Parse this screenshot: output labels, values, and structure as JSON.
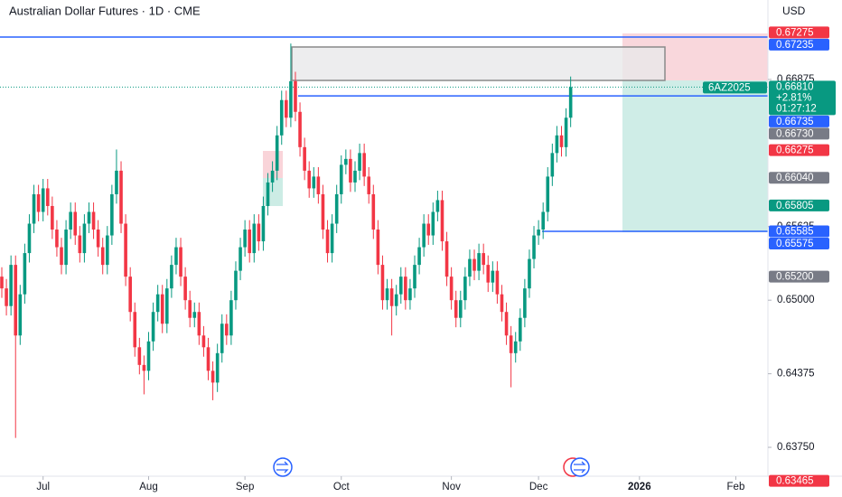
{
  "chart_data": {
    "type": "candlestick",
    "title": "Australian Dollar Futures · 1D · CME",
    "currency": "USD",
    "up_color": "#089981",
    "down_color": "#f23645",
    "xlim": [
      0,
      167
    ],
    "xticks": [
      {
        "value": 9,
        "label": "Jul"
      },
      {
        "value": 32,
        "label": "Aug"
      },
      {
        "value": 53,
        "label": "Sep"
      },
      {
        "value": 74,
        "label": "Oct"
      },
      {
        "value": 98,
        "label": "Nov"
      },
      {
        "value": 117,
        "label": "Dec"
      },
      {
        "value": 139,
        "label": "2026"
      },
      {
        "value": 160,
        "label": "Feb"
      }
    ],
    "ylim": [
      0.6352,
      0.6755
    ],
    "yticks": [
      {
        "value": 0.66875,
        "label": "0.66875"
      },
      {
        "value": 0.65625,
        "label": "0.65625"
      },
      {
        "value": 0.65,
        "label": "0.65000"
      },
      {
        "value": 0.64375,
        "label": "0.64375"
      },
      {
        "value": 0.6375,
        "label": "0.63750"
      }
    ],
    "open": [
      0.652,
      0.651,
      0.6495,
      0.653,
      0.647,
      0.6505,
      0.654,
      0.6565,
      0.659,
      0.6575,
      0.6595,
      0.658,
      0.656,
      0.6545,
      0.653,
      0.656,
      0.6575,
      0.6555,
      0.654,
      0.6565,
      0.6575,
      0.656,
      0.6545,
      0.653,
      0.6555,
      0.659,
      0.661,
      0.6565,
      0.652,
      0.649,
      0.646,
      0.6445,
      0.644,
      0.6465,
      0.649,
      0.6505,
      0.648,
      0.651,
      0.653,
      0.6545,
      0.652,
      0.65,
      0.6485,
      0.649,
      0.647,
      0.646,
      0.644,
      0.643,
      0.6455,
      0.648,
      0.647,
      0.65,
      0.6525,
      0.6545,
      0.656,
      0.654,
      0.6565,
      0.655,
      0.658,
      0.66,
      0.661,
      0.664,
      0.667,
      0.6655,
      0.6686,
      0.666,
      0.663,
      0.661,
      0.6595,
      0.6605,
      0.659,
      0.656,
      0.654,
      0.6565,
      0.659,
      0.6615,
      0.662,
      0.66,
      0.661,
      0.6625,
      0.6605,
      0.659,
      0.656,
      0.653,
      0.65,
      0.651,
      0.6495,
      0.6505,
      0.652,
      0.65,
      0.651,
      0.653,
      0.6545,
      0.6565,
      0.6555,
      0.6575,
      0.6585,
      0.655,
      0.652,
      0.65,
      0.6485,
      0.65,
      0.652,
      0.6535,
      0.6525,
      0.654,
      0.653,
      0.6515,
      0.6525,
      0.6505,
      0.649,
      0.647,
      0.6455,
      0.6465,
      0.6485,
      0.651,
      0.6535,
      0.6555,
      0.656,
      0.6575,
      0.6605,
      0.6625,
      0.664,
      0.663,
      0.6655
    ],
    "high": [
      0.6528,
      0.6518,
      0.6538,
      0.6538,
      0.6513,
      0.6548,
      0.6573,
      0.6598,
      0.6598,
      0.6603,
      0.6603,
      0.6588,
      0.6568,
      0.6553,
      0.6568,
      0.6583,
      0.6583,
      0.6563,
      0.6573,
      0.6583,
      0.6583,
      0.6568,
      0.6553,
      0.6563,
      0.6598,
      0.6628,
      0.6618,
      0.6573,
      0.6528,
      0.6498,
      0.6468,
      0.6453,
      0.6473,
      0.6498,
      0.6513,
      0.6513,
      0.6518,
      0.6538,
      0.6553,
      0.6553,
      0.6528,
      0.6508,
      0.6498,
      0.6498,
      0.6478,
      0.6468,
      0.6448,
      0.6463,
      0.6488,
      0.6488,
      0.6508,
      0.6533,
      0.6553,
      0.6568,
      0.6568,
      0.6573,
      0.6573,
      0.6588,
      0.6608,
      0.6618,
      0.6648,
      0.6678,
      0.6678,
      0.6718,
      0.6694,
      0.6668,
      0.6638,
      0.6618,
      0.6613,
      0.6613,
      0.6598,
      0.6568,
      0.6573,
      0.6598,
      0.6623,
      0.6628,
      0.6628,
      0.6618,
      0.6633,
      0.6633,
      0.6613,
      0.6598,
      0.6568,
      0.6538,
      0.6518,
      0.6518,
      0.6513,
      0.6528,
      0.6528,
      0.6518,
      0.6538,
      0.6553,
      0.6573,
      0.6573,
      0.6583,
      0.6593,
      0.6593,
      0.6558,
      0.6528,
      0.6508,
      0.6508,
      0.6528,
      0.6543,
      0.6543,
      0.6548,
      0.6548,
      0.6538,
      0.6533,
      0.6533,
      0.6513,
      0.6498,
      0.6478,
      0.6473,
      0.6493,
      0.6518,
      0.6543,
      0.6563,
      0.6568,
      0.6583,
      0.6613,
      0.6633,
      0.6648,
      0.6648,
      0.6663,
      0.669
    ],
    "low": [
      0.6502,
      0.6487,
      0.6487,
      0.6383,
      0.6462,
      0.6497,
      0.6532,
      0.6557,
      0.6567,
      0.6567,
      0.6572,
      0.6552,
      0.6537,
      0.6522,
      0.6522,
      0.6552,
      0.6547,
      0.6532,
      0.6532,
      0.6557,
      0.6552,
      0.6537,
      0.6522,
      0.6522,
      0.6547,
      0.6582,
      0.6557,
      0.6512,
      0.6482,
      0.6452,
      0.6437,
      0.642,
      0.6432,
      0.6457,
      0.6482,
      0.6472,
      0.6472,
      0.6502,
      0.6522,
      0.6512,
      0.6492,
      0.6477,
      0.6477,
      0.6462,
      0.6452,
      0.6432,
      0.6415,
      0.6422,
      0.6447,
      0.6462,
      0.6462,
      0.6492,
      0.6517,
      0.6537,
      0.6532,
      0.6532,
      0.6542,
      0.6542,
      0.6572,
      0.6592,
      0.6602,
      0.6632,
      0.6647,
      0.6647,
      0.6652,
      0.6622,
      0.6602,
      0.6587,
      0.6587,
      0.6582,
      0.6552,
      0.6532,
      0.6532,
      0.6557,
      0.6582,
      0.6607,
      0.6592,
      0.6592,
      0.6602,
      0.6597,
      0.6582,
      0.6552,
      0.6522,
      0.6492,
      0.6492,
      0.647,
      0.6487,
      0.6497,
      0.6492,
      0.6492,
      0.6502,
      0.6522,
      0.6537,
      0.6547,
      0.6547,
      0.6567,
      0.6542,
      0.6512,
      0.6492,
      0.6477,
      0.6477,
      0.6492,
      0.6512,
      0.6517,
      0.6517,
      0.6522,
      0.6507,
      0.6507,
      0.6497,
      0.6482,
      0.6462,
      0.6426,
      0.6447,
      0.6457,
      0.6477,
      0.6502,
      0.6527,
      0.6547,
      0.6552,
      0.6567,
      0.6597,
      0.6617,
      0.6622,
      0.6622,
      0.6647
    ],
    "close": [
      0.651,
      0.6495,
      0.653,
      0.647,
      0.6505,
      0.654,
      0.6565,
      0.659,
      0.6575,
      0.6595,
      0.658,
      0.656,
      0.6545,
      0.653,
      0.656,
      0.6575,
      0.6555,
      0.654,
      0.6565,
      0.6575,
      0.656,
      0.6545,
      0.653,
      0.6555,
      0.659,
      0.661,
      0.6565,
      0.652,
      0.649,
      0.646,
      0.6445,
      0.644,
      0.6465,
      0.649,
      0.6505,
      0.648,
      0.651,
      0.653,
      0.6545,
      0.652,
      0.65,
      0.6485,
      0.649,
      0.647,
      0.646,
      0.644,
      0.643,
      0.6455,
      0.648,
      0.647,
      0.65,
      0.6525,
      0.6545,
      0.656,
      0.654,
      0.6565,
      0.655,
      0.658,
      0.66,
      0.661,
      0.664,
      0.667,
      0.6655,
      0.6686,
      0.666,
      0.663,
      0.661,
      0.6595,
      0.6605,
      0.659,
      0.656,
      0.654,
      0.6565,
      0.659,
      0.6615,
      0.662,
      0.66,
      0.661,
      0.6625,
      0.6605,
      0.659,
      0.656,
      0.653,
      0.65,
      0.651,
      0.6495,
      0.6505,
      0.652,
      0.65,
      0.651,
      0.653,
      0.6545,
      0.6565,
      0.6555,
      0.6575,
      0.6585,
      0.655,
      0.652,
      0.65,
      0.6485,
      0.65,
      0.652,
      0.6535,
      0.6525,
      0.654,
      0.653,
      0.6515,
      0.6525,
      0.6505,
      0.649,
      0.647,
      0.6455,
      0.6465,
      0.6485,
      0.651,
      0.6535,
      0.6555,
      0.656,
      0.6575,
      0.6605,
      0.6625,
      0.664,
      0.663,
      0.6655,
      0.6681
    ],
    "last_price": {
      "symbol": "6AZ2025",
      "value": 0.6681,
      "label": "0.66810",
      "change": "+2.81%",
      "countdown": "01:27:12",
      "color": "#089981"
    },
    "price_tags": [
      {
        "value": 0.67275,
        "label": "0.67275",
        "color": "#f23645"
      },
      {
        "value": 0.67235,
        "label": "0.67235",
        "color": "#2962ff",
        "line": true
      },
      {
        "value": 0.66735,
        "label": "0.66735",
        "color": "#2962ff",
        "line": true
      },
      {
        "value": 0.6673,
        "label": "0.66730",
        "color": "#787b86"
      },
      {
        "value": 0.66275,
        "label": "0.66275",
        "color": "#f23645"
      },
      {
        "value": 0.6604,
        "label": "0.66040",
        "color": "#787b86"
      },
      {
        "value": 0.65805,
        "label": "0.65805",
        "color": "#089981"
      },
      {
        "value": 0.65585,
        "label": "0.65585",
        "color": "#2962ff",
        "line": true
      },
      {
        "value": 0.65575,
        "label": "0.65575",
        "color": "#2962ff"
      },
      {
        "value": 0.652,
        "label": "0.65200",
        "color": "#787b86"
      },
      {
        "value": 0.63465,
        "label": "0.63465",
        "color": "#f23645"
      }
    ]
  }
}
